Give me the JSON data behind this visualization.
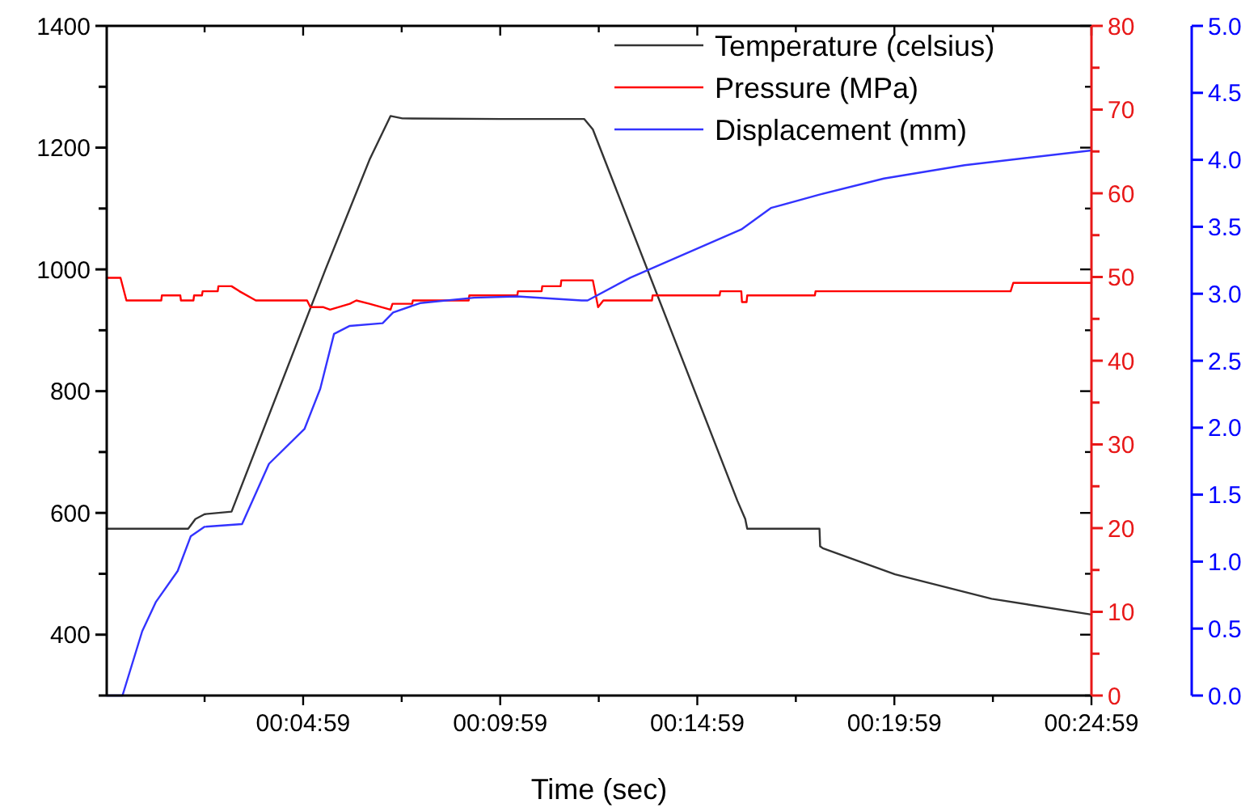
{
  "chart_data": {
    "type": "line",
    "xlabel": "Time (sec)",
    "xlim": [
      0,
      1499
    ],
    "xticks": [
      {
        "value": 149,
        "label": null
      },
      {
        "value": 299,
        "label": "00:04:59"
      },
      {
        "value": 449,
        "label": null
      },
      {
        "value": 599,
        "label": "00:09:59"
      },
      {
        "value": 749,
        "label": null
      },
      {
        "value": 899,
        "label": "00:14:59"
      },
      {
        "value": 1049,
        "label": null
      },
      {
        "value": 1199,
        "label": "00:19:59"
      },
      {
        "value": 1349,
        "label": null
      },
      {
        "value": 1499,
        "label": "00:24:59"
      }
    ],
    "ylim": [
      300,
      1400
    ],
    "yticks": [
      {
        "value": 300,
        "label": null
      },
      400,
      {
        "value": 500,
        "label": null
      },
      600,
      {
        "value": 700,
        "label": null
      },
      800,
      {
        "value": 900,
        "label": null
      },
      1000,
      {
        "value": 1100,
        "label": null
      },
      1200,
      {
        "value": 1300,
        "label": null
      },
      1400
    ],
    "y2lim": [
      0,
      80
    ],
    "y2ticks": [
      0,
      {
        "value": 5,
        "label": null
      },
      10,
      {
        "value": 15,
        "label": null
      },
      20,
      {
        "value": 25,
        "label": null
      },
      30,
      {
        "value": 35,
        "label": null
      },
      40,
      {
        "value": 45,
        "label": null
      },
      50,
      {
        "value": 55,
        "label": null
      },
      60,
      {
        "value": 65,
        "label": null
      },
      70,
      {
        "value": 75,
        "label": null
      },
      80
    ],
    "y3lim": [
      0,
      5
    ],
    "y3ticks": [
      {
        "value": 0,
        "label": "0.0"
      },
      {
        "value": 0.5,
        "label": "0.5"
      },
      {
        "value": 1,
        "label": "1.0"
      },
      {
        "value": 1.5,
        "label": "1.5"
      },
      {
        "value": 2,
        "label": "2.0"
      },
      {
        "value": 2.5,
        "label": "2.5"
      },
      {
        "value": 3,
        "label": "3.0"
      },
      {
        "value": 3.5,
        "label": "3.5"
      },
      {
        "value": 4,
        "label": "4.0"
      },
      {
        "value": 4.5,
        "label": "4.5"
      },
      {
        "value": 5,
        "label": "5.0"
      }
    ],
    "legend": "top right",
    "grid": false,
    "marker": "none",
    "line_style": "solid",
    "series": [
      {
        "name": "Temperature (celsius)",
        "color": "#333333",
        "x": [
          0,
          124,
          135,
          149,
          190,
          333,
          400,
          420,
          432,
          450,
          600,
          727,
          740,
          960,
          972,
          975,
          1085,
          1086,
          1090,
          1200,
          1347,
          1499
        ],
        "values": [
          574,
          574,
          590,
          598,
          602,
          1000,
          1180,
          1225,
          1252,
          1248,
          1247,
          1247,
          1230,
          620,
          590,
          574,
          574,
          545,
          542,
          499,
          459,
          433
        ]
      },
      {
        "name": "Pressure (MPa)",
        "color": "#ff0000",
        "axis": "y2",
        "x": [
          0,
          21,
          30,
          83,
          84,
          112,
          113,
          132,
          133,
          145,
          146,
          169,
          170,
          190,
          202,
          227,
          305,
          310,
          330,
          340,
          370,
          380,
          400,
          432,
          435,
          465,
          466,
          551,
          552,
          625,
          626,
          662,
          663,
          691,
          692,
          740,
          748,
          756,
          830,
          831,
          933,
          934,
          966,
          967,
          974,
          975,
          1078,
          1079,
          1376,
          1380,
          1499
        ],
        "values": [
          49.9,
          49.9,
          47.2,
          47.2,
          47.8,
          47.8,
          47.2,
          47.2,
          47.8,
          47.8,
          48.3,
          48.3,
          48.9,
          48.9,
          48.3,
          47.2,
          47.2,
          46.4,
          46.4,
          46.1,
          46.8,
          47.2,
          46.8,
          46.1,
          46.8,
          46.8,
          47.2,
          47.2,
          47.8,
          47.8,
          48.3,
          48.3,
          48.9,
          48.9,
          49.6,
          49.6,
          46.4,
          47.2,
          47.2,
          47.8,
          47.8,
          48.3,
          48.3,
          47.0,
          47.0,
          47.8,
          47.8,
          48.3,
          48.3,
          49.3,
          49.3
        ]
      },
      {
        "name": "Displacement (mm)",
        "color": "#3333ff",
        "axis": "y3",
        "x": [
          0,
          24,
          54,
          75,
          108,
          128,
          149,
          206,
          247,
          301,
          325,
          346,
          370,
          420,
          436,
          477,
          559,
          625,
          723,
          732,
          797,
          966,
          1011,
          1085,
          1183,
          1306,
          1499
        ],
        "values": [
          0,
          0,
          0.48,
          0.7,
          0.93,
          1.19,
          1.26,
          1.28,
          1.73,
          1.99,
          2.29,
          2.7,
          2.76,
          2.78,
          2.86,
          2.93,
          2.97,
          2.98,
          2.95,
          2.95,
          3.12,
          3.48,
          3.64,
          3.74,
          3.86,
          3.96,
          4.07
        ]
      }
    ]
  }
}
